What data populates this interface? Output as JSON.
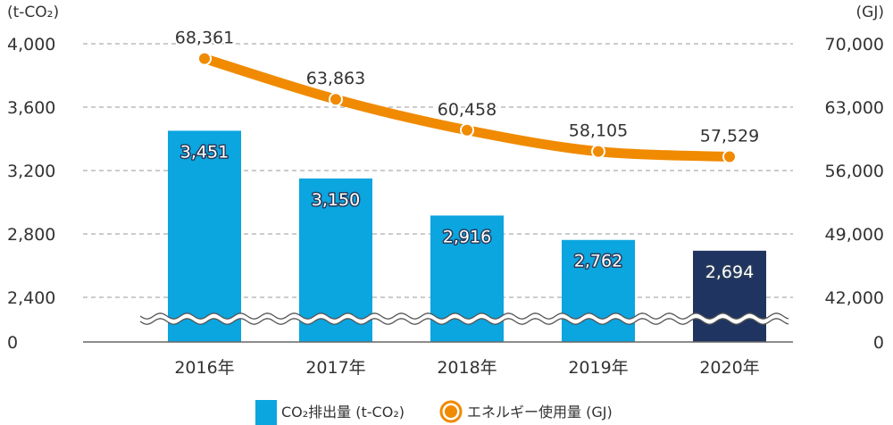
{
  "chart_data": {
    "type": "bar",
    "categories": [
      "2016年",
      "2017年",
      "2018年",
      "2019年",
      "2020年"
    ],
    "series": [
      {
        "name": "CO₂排出量 (t-CO₂)",
        "type": "bar",
        "axis": "left",
        "values": [
          3451,
          3150,
          2916,
          2762,
          2694
        ],
        "labels": [
          "3,451",
          "3,150",
          "2,916",
          "2,762",
          "2,694"
        ],
        "color": "#0ba5df",
        "highlight_color": "#1f3460"
      },
      {
        "name": "エネルギー使用量 (GJ)",
        "type": "line",
        "axis": "right",
        "values": [
          68361,
          63863,
          60458,
          58105,
          57529
        ],
        "labels": [
          "68,361",
          "63,863",
          "60,458",
          "58,105",
          "57,529"
        ],
        "color": "#f08a00"
      }
    ],
    "y_left": {
      "unit": "(t-CO₂)",
      "ticks": [
        0,
        2400,
        2800,
        3200,
        3600,
        4000
      ],
      "tick_labels": [
        "0",
        "2,400",
        "2,800",
        "3,200",
        "3,600",
        "4,000"
      ],
      "range": [
        2400,
        4000
      ],
      "axis_break": true
    },
    "y_right": {
      "unit": "(GJ)",
      "ticks": [
        0,
        42000,
        49000,
        56000,
        63000,
        70000
      ],
      "tick_labels": [
        "0",
        "42,000",
        "49,000",
        "56,000",
        "63,000",
        "70,000"
      ],
      "range": [
        42000,
        70000
      ],
      "axis_break": true
    },
    "grid": true,
    "legend_position": "bottom"
  },
  "colors": {
    "bar": "#0ba5df",
    "bar_highlight": "#1f3460",
    "line": "#f08a00",
    "grid": "#999999"
  },
  "icons": {
    "axis_break": "wavy-break-line"
  }
}
